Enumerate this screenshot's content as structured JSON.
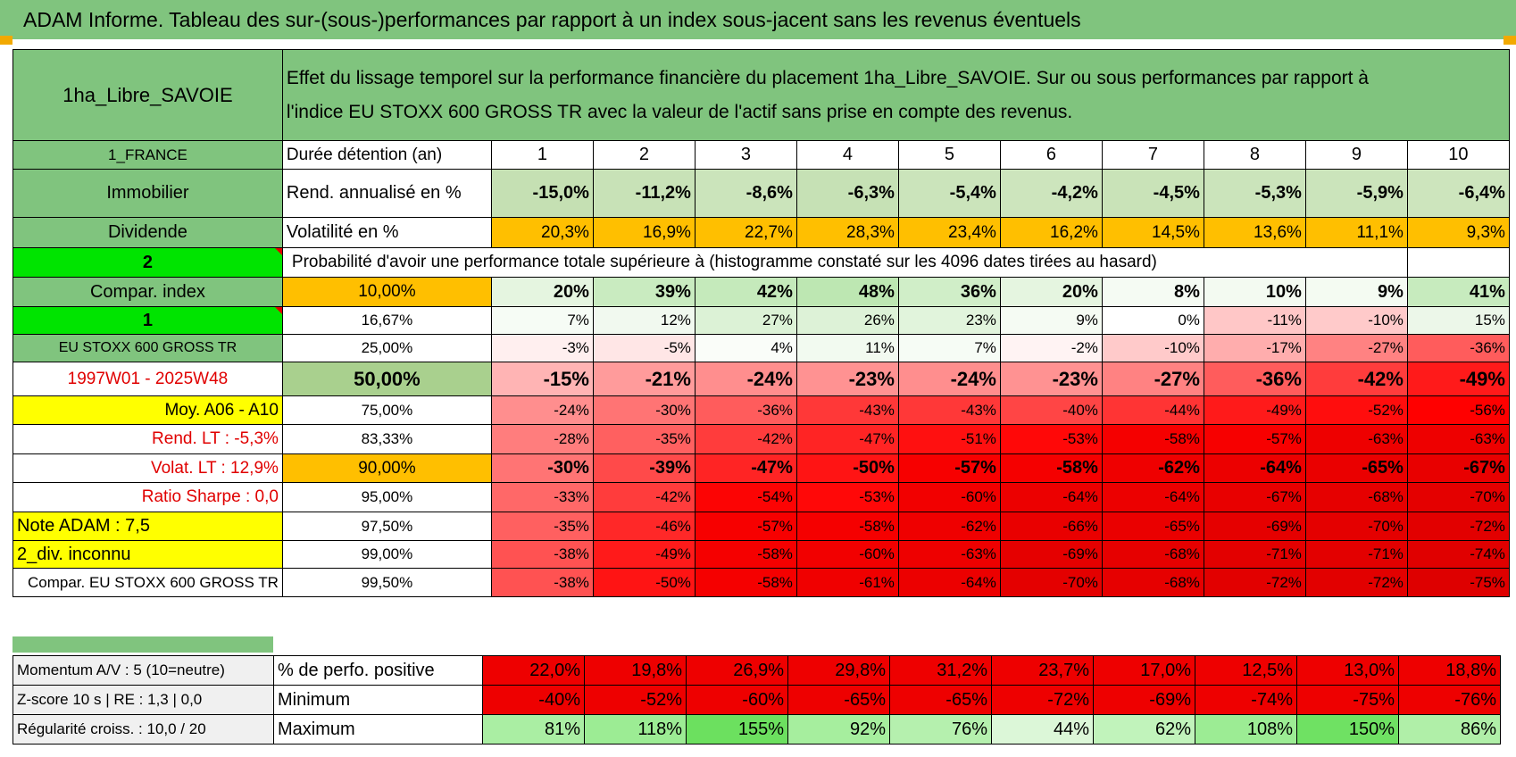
{
  "title": "ADAM Informe. Tableau des sur-(sous-)performances par rapport à un index sous-jacent sans les revenus éventuels",
  "header": {
    "fund": "1ha_Libre_SAVOIE",
    "description_line1": "Effet du lissage temporel sur la performance financière du placement 1ha_Libre_SAVOIE. Sur ou sous performances par rapport à",
    "description_line2": "l'indice EU STOXX 600 GROSS TR avec la valeur de l'actif sans prise en compte des revenus."
  },
  "years": [
    "1",
    "2",
    "3",
    "4",
    "5",
    "6",
    "7",
    "8",
    "9",
    "10"
  ],
  "rows_top": {
    "country": "1_FRANCE",
    "duration_label": "Durée détention (an)",
    "category": "Immobilier",
    "return_label": "Rend. annualisé en %",
    "returns": [
      "-15,0%",
      "-11,2%",
      "-8,6%",
      "-6,3%",
      "-5,4%",
      "-4,2%",
      "-4,5%",
      "-5,3%",
      "-5,9%",
      "-6,4%"
    ],
    "return_colors": [
      "#c5e0b3",
      "#c8e2b7",
      "#cbe4bb",
      "#c6e1b5",
      "#cbe4bb",
      "#cde5bd",
      "#c9e3b8",
      "#cbe4bb",
      "#cbe4bb",
      "#cde5bd"
    ],
    "income": "Dividende",
    "volatility_label": "Volatilité en %",
    "volatility": [
      "20,3%",
      "16,9%",
      "22,7%",
      "28,3%",
      "23,4%",
      "16,2%",
      "14,5%",
      "13,6%",
      "11,1%",
      "9,3%"
    ],
    "volatility_color": "#ffbf00",
    "number_two": "2",
    "probability_title": "Probabilité d'avoir une performance totale supérieure à (histogramme constaté sur les 4096 dates tirées au hasard)"
  },
  "left_labels": [
    "Compar. index",
    "1",
    "EU STOXX 600 GROSS TR",
    "1997W01 - 2025W48",
    "Moy. A06 - A10",
    "Rend. LT :    -5,3%",
    "Volat. LT :    12,9%",
    "Ratio Sharpe :     0,0",
    "Note ADAM : 7,5",
    "2_div. inconnu",
    "Compar. EU STOXX 600 GROSS TR"
  ],
  "thresholds": [
    "10,00%",
    "16,67%",
    "25,00%",
    "50,00%",
    "75,00%",
    "83,33%",
    "90,00%",
    "95,00%",
    "97,50%",
    "99,00%",
    "99,50%"
  ],
  "prob_rows": [
    {
      "values": [
        "20%",
        "39%",
        "42%",
        "48%",
        "36%",
        "20%",
        "8%",
        "10%",
        "9%",
        "41%"
      ],
      "colors": [
        "#e5f5e0",
        "#c9ebc0",
        "#c5eabb",
        "#bde7b2",
        "#d0eec8",
        "#e5f5e0",
        "#f5fbf3",
        "#f3faf1",
        "#f4fbf2",
        "#c7ebbe"
      ]
    },
    {
      "values": [
        "7%",
        "12%",
        "27%",
        "26%",
        "23%",
        "9%",
        "0%",
        "-11%",
        "-10%",
        "15%"
      ],
      "colors": [
        "#f6fcf5",
        "#f1f9ef",
        "#dcf2d6",
        "#ddf2d7",
        "#e1f4dc",
        "#f5fbf3",
        "#ffffff",
        "#ffc7c7",
        "#ffcaca",
        "#ecf7e9"
      ]
    },
    {
      "values": [
        "-3%",
        "-5%",
        "4%",
        "11%",
        "7%",
        "-2%",
        "-10%",
        "-17%",
        "-27%",
        "-36%"
      ],
      "colors": [
        "#ffefef",
        "#ffe6e6",
        "#fafdf9",
        "#f2faf0",
        "#f6fcf5",
        "#fff3f3",
        "#ffcaca",
        "#ffadad",
        "#ff8282",
        "#ff5c5c"
      ]
    },
    {
      "values": [
        "-15%",
        "-21%",
        "-24%",
        "-23%",
        "-24%",
        "-23%",
        "-27%",
        "-36%",
        "-42%",
        "-49%"
      ],
      "colors": [
        "#ffb4b4",
        "#ff9b9b",
        "#ff8e8e",
        "#ff9292",
        "#ff8e8e",
        "#ff9292",
        "#ff8282",
        "#ff5c5c",
        "#ff3c3c",
        "#ff1a1a"
      ]
    },
    {
      "values": [
        "-24%",
        "-30%",
        "-36%",
        "-43%",
        "-43%",
        "-40%",
        "-44%",
        "-49%",
        "-52%",
        "-56%"
      ],
      "colors": [
        "#ff8e8e",
        "#ff7474",
        "#ff5c5c",
        "#ff3838",
        "#ff3838",
        "#ff4545",
        "#ff3434",
        "#ff1a1a",
        "#ff0d0d",
        "#ff0000"
      ]
    },
    {
      "values": [
        "-28%",
        "-35%",
        "-42%",
        "-47%",
        "-51%",
        "-53%",
        "-58%",
        "-57%",
        "-63%",
        "-63%"
      ],
      "colors": [
        "#ff7d7d",
        "#ff6060",
        "#ff3c3c",
        "#ff2424",
        "#ff1010",
        "#ff0808",
        "#f50000",
        "#f70000",
        "#ee0000",
        "#ee0000"
      ]
    },
    {
      "values": [
        "-30%",
        "-39%",
        "-47%",
        "-50%",
        "-57%",
        "-58%",
        "-62%",
        "-64%",
        "-65%",
        "-67%"
      ],
      "colors": [
        "#ff7474",
        "#ff4a4a",
        "#ff2424",
        "#ff1414",
        "#f70000",
        "#f50000",
        "#ef0000",
        "#ec0000",
        "#ea0000",
        "#e80000"
      ]
    },
    {
      "values": [
        "-33%",
        "-42%",
        "-54%",
        "-53%",
        "-60%",
        "-64%",
        "-64%",
        "-67%",
        "-68%",
        "-70%"
      ],
      "colors": [
        "#ff6868",
        "#ff3c3c",
        "#fc0404",
        "#ff0808",
        "#f20000",
        "#ec0000",
        "#ec0000",
        "#e80000",
        "#e60000",
        "#e40000"
      ]
    },
    {
      "values": [
        "-35%",
        "-46%",
        "-57%",
        "-58%",
        "-62%",
        "-66%",
        "-65%",
        "-69%",
        "-70%",
        "-72%"
      ],
      "colors": [
        "#ff6060",
        "#ff2828",
        "#f70000",
        "#f50000",
        "#ef0000",
        "#e90000",
        "#ea0000",
        "#e50000",
        "#e40000",
        "#e20000"
      ]
    },
    {
      "values": [
        "-38%",
        "-49%",
        "-58%",
        "-60%",
        "-63%",
        "-69%",
        "-68%",
        "-71%",
        "-71%",
        "-74%"
      ],
      "colors": [
        "#ff5252",
        "#ff1a1a",
        "#f50000",
        "#f20000",
        "#ee0000",
        "#e50000",
        "#e60000",
        "#e30000",
        "#e30000",
        "#e00000"
      ]
    },
    {
      "values": [
        "-38%",
        "-50%",
        "-58%",
        "-61%",
        "-64%",
        "-70%",
        "-68%",
        "-72%",
        "-72%",
        "-75%"
      ],
      "colors": [
        "#ff5252",
        "#ff1414",
        "#f50000",
        "#f00000",
        "#ec0000",
        "#e40000",
        "#e60000",
        "#e20000",
        "#e20000",
        "#de0000"
      ]
    }
  ],
  "bottom": {
    "momentum_label": "Momentum A/V : 5 (10=neutre)",
    "positive_label": "% de perfo. positive",
    "positive": [
      "22,0%",
      "19,8%",
      "26,9%",
      "29,8%",
      "31,2%",
      "23,7%",
      "17,0%",
      "12,5%",
      "13,0%",
      "18,8%"
    ],
    "zscore_label": "Z-score 10 s | RE : 1,3 | 0,0",
    "minimum_label": "Minimum",
    "minimum": [
      "-40%",
      "-52%",
      "-60%",
      "-65%",
      "-65%",
      "-72%",
      "-69%",
      "-74%",
      "-75%",
      "-76%"
    ],
    "regularity_label": "Régularité croiss. : 10,0 / 20",
    "maximum_label": "Maximum",
    "maximum": [
      "81%",
      "118%",
      "155%",
      "92%",
      "76%",
      "44%",
      "62%",
      "108%",
      "150%",
      "86%"
    ],
    "maximum_colors": [
      "#aaeea3",
      "#9cec94",
      "#6ce05f",
      "#a6ee9e",
      "#b5f0ae",
      "#dcf7d8",
      "#c1f3bb",
      "#9cec94",
      "#6fe163",
      "#b0efa8"
    ]
  },
  "colors": {
    "header_green": "#80c47e",
    "bright_green": "#00e400",
    "orange": "#ffbf00",
    "yellow": "#ffff00",
    "dark_red_text": "#e00000",
    "bottom_red": "#ee0000",
    "light_grey": "#f0f0f0"
  }
}
